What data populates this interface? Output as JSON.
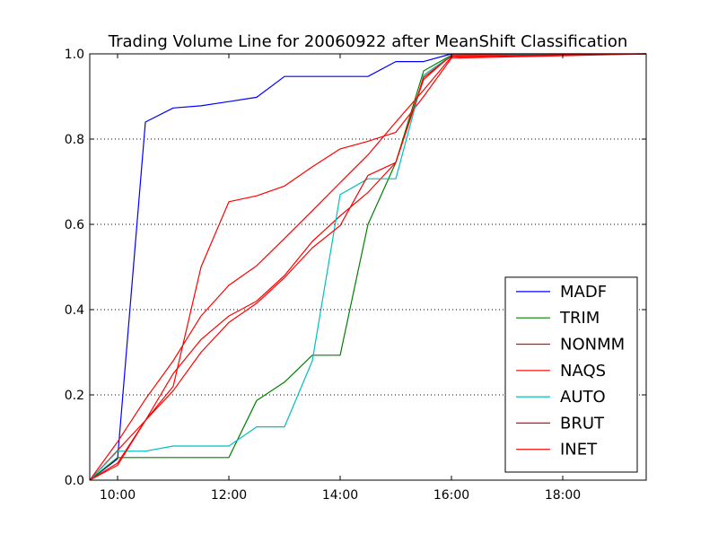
{
  "chart_data": {
    "type": "line",
    "title": "Trading Volume Line for 20060922 after MeanShift Classification",
    "xlabel": "",
    "ylabel": "",
    "xlim": [
      "09:30",
      "19:30"
    ],
    "ylim": [
      0.0,
      1.0
    ],
    "x_ticks": [
      "10:00",
      "12:00",
      "14:00",
      "16:00",
      "18:00"
    ],
    "y_ticks": [
      "0.0",
      "0.2",
      "0.4",
      "0.6",
      "0.8",
      "1.0"
    ],
    "grid": "horizontal dotted",
    "legend_position": "lower-right",
    "series": [
      {
        "name": "MADF",
        "color": "#0000ff",
        "points": [
          [
            "09:30",
            0.0
          ],
          [
            "10:00",
            0.05
          ],
          [
            "10:30",
            0.84
          ],
          [
            "11:00",
            0.873
          ],
          [
            "11:30",
            0.878
          ],
          [
            "12:00",
            0.888
          ],
          [
            "12:30",
            0.898
          ],
          [
            "13:00",
            0.947
          ],
          [
            "13:30",
            0.947
          ],
          [
            "14:00",
            0.947
          ],
          [
            "14:30",
            0.947
          ],
          [
            "15:00",
            0.982
          ],
          [
            "15:30",
            0.982
          ],
          [
            "16:00",
            1.0
          ],
          [
            "19:30",
            1.0
          ]
        ]
      },
      {
        "name": "TRIM",
        "color": "#008000",
        "points": [
          [
            "09:30",
            0.0
          ],
          [
            "10:00",
            0.053
          ],
          [
            "10:30",
            0.053
          ],
          [
            "11:00",
            0.053
          ],
          [
            "11:30",
            0.053
          ],
          [
            "12:00",
            0.053
          ],
          [
            "12:30",
            0.187
          ],
          [
            "13:00",
            0.23
          ],
          [
            "13:30",
            0.293
          ],
          [
            "14:00",
            0.293
          ],
          [
            "14:30",
            0.6
          ],
          [
            "15:00",
            0.745
          ],
          [
            "15:30",
            0.96
          ],
          [
            "16:00",
            0.997
          ],
          [
            "19:30",
            1.0
          ]
        ]
      },
      {
        "name": "NONMM",
        "color": "#ff0000",
        "points": [
          [
            "09:30",
            0.0
          ],
          [
            "10:00",
            0.04
          ],
          [
            "10:30",
            0.14
          ],
          [
            "11:00",
            0.25
          ],
          [
            "11:30",
            0.33
          ],
          [
            "12:00",
            0.385
          ],
          [
            "12:30",
            0.42
          ],
          [
            "13:00",
            0.48
          ],
          [
            "13:30",
            0.56
          ],
          [
            "14:00",
            0.62
          ],
          [
            "14:30",
            0.675
          ],
          [
            "15:00",
            0.745
          ],
          [
            "15:30",
            0.94
          ],
          [
            "16:00",
            0.997
          ],
          [
            "19:30",
            1.0
          ]
        ]
      },
      {
        "name": "NAQS",
        "color": "#ff0000",
        "points": [
          [
            "09:30",
            0.0
          ],
          [
            "10:00",
            0.07
          ],
          [
            "10:30",
            0.14
          ],
          [
            "11:00",
            0.22
          ],
          [
            "11:30",
            0.5
          ],
          [
            "12:00",
            0.653
          ],
          [
            "12:30",
            0.667
          ],
          [
            "13:00",
            0.69
          ],
          [
            "13:30",
            0.735
          ],
          [
            "14:00",
            0.777
          ],
          [
            "14:30",
            0.795
          ],
          [
            "15:00",
            0.816
          ],
          [
            "15:30",
            0.9
          ],
          [
            "16:00",
            0.99
          ],
          [
            "19:30",
            1.0
          ]
        ]
      },
      {
        "name": "AUTO",
        "color": "#00bfbf",
        "points": [
          [
            "09:30",
            0.0
          ],
          [
            "10:00",
            0.068
          ],
          [
            "10:30",
            0.068
          ],
          [
            "11:00",
            0.08
          ],
          [
            "11:30",
            0.08
          ],
          [
            "12:00",
            0.08
          ],
          [
            "12:30",
            0.125
          ],
          [
            "13:00",
            0.125
          ],
          [
            "13:30",
            0.28
          ],
          [
            "14:00",
            0.67
          ],
          [
            "14:30",
            0.707
          ],
          [
            "15:00",
            0.707
          ],
          [
            "15:30",
            0.95
          ],
          [
            "16:00",
            0.996
          ],
          [
            "19:30",
            1.0
          ]
        ]
      },
      {
        "name": "BRUT",
        "color": "#ff0000",
        "points": [
          [
            "09:30",
            0.0
          ],
          [
            "10:00",
            0.035
          ],
          [
            "10:30",
            0.14
          ],
          [
            "11:00",
            0.21
          ],
          [
            "11:30",
            0.3
          ],
          [
            "12:00",
            0.37
          ],
          [
            "12:30",
            0.415
          ],
          [
            "13:00",
            0.475
          ],
          [
            "13:30",
            0.545
          ],
          [
            "14:00",
            0.597
          ],
          [
            "14:30",
            0.715
          ],
          [
            "15:00",
            0.745
          ],
          [
            "15:30",
            0.945
          ],
          [
            "16:00",
            0.995
          ],
          [
            "19:30",
            1.0
          ]
        ]
      },
      {
        "name": "INET",
        "color": "#ff0000",
        "points": [
          [
            "09:30",
            0.0
          ],
          [
            "10:00",
            0.09
          ],
          [
            "10:30",
            0.19
          ],
          [
            "11:00",
            0.28
          ],
          [
            "11:30",
            0.385
          ],
          [
            "12:00",
            0.457
          ],
          [
            "12:30",
            0.503
          ],
          [
            "13:00",
            0.567
          ],
          [
            "13:30",
            0.632
          ],
          [
            "14:00",
            0.698
          ],
          [
            "14:30",
            0.763
          ],
          [
            "15:00",
            0.84
          ],
          [
            "15:30",
            0.915
          ],
          [
            "16:00",
            0.993
          ],
          [
            "19:30",
            1.0
          ]
        ]
      }
    ]
  }
}
